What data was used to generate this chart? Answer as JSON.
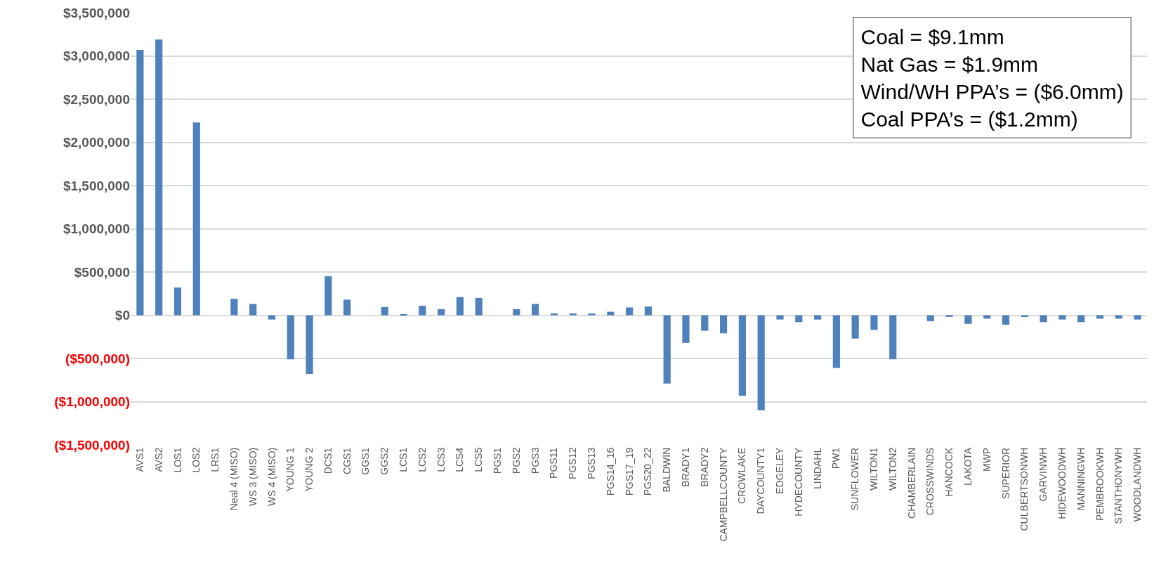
{
  "chart_data": {
    "type": "bar",
    "categories": [
      "AVS1",
      "AVS2",
      "LOS1",
      "LOS2",
      "LRS1",
      "Neal 4 (MISO)",
      "WS 3 (MISO)",
      "WS 4 (MISO)",
      "YOUNG 1",
      "YOUNG 2",
      "DCS1",
      "CGS1",
      "GGS1",
      "GGS2",
      "LCS1",
      "LCS2",
      "LCS3",
      "LCS4",
      "LCS5",
      "PGS1",
      "PGS2",
      "PGS3",
      "PGS11",
      "PGS12",
      "PGS13",
      "PGS14_16",
      "PGS17_19",
      "PGS20_22",
      "BALDWIN",
      "BRADY1",
      "BRADY2",
      "CAMPBELLCOUNTY",
      "CROWLAKE",
      "DAYCOUNTY1",
      "EDGELEY",
      "HYDECOUNTY",
      "LINDAHL",
      "PW1",
      "SUNFLOWER",
      "WILTON1",
      "WILTON2",
      "CHAMBERLAIN",
      "CROSSWINDS",
      "HANCOCK",
      "LAKOTA",
      "MWP",
      "SUPERIOR",
      "CULBERTSONWH",
      "GARVINWH",
      "HIDEWOODWH",
      "MANNINGWH",
      "PEMBROOKWH",
      "STANTHONYWH",
      "WOODLANDWH"
    ],
    "values": [
      3070000,
      3190000,
      320000,
      2230000,
      0,
      190000,
      130000,
      -50000,
      -510000,
      -680000,
      450000,
      180000,
      0,
      95000,
      10000,
      110000,
      70000,
      210000,
      200000,
      0,
      70000,
      130000,
      20000,
      20000,
      20000,
      40000,
      90000,
      100000,
      -790000,
      -320000,
      -180000,
      -210000,
      -930000,
      -1100000,
      -50000,
      -80000,
      -50000,
      -610000,
      -270000,
      -170000,
      -510000,
      0,
      -70000,
      -20000,
      -100000,
      -40000,
      -110000,
      -20000,
      -80000,
      -50000,
      -80000,
      -40000,
      -40000,
      -50000
    ],
    "color": "#4f81bd",
    "ylim": [
      -1500000,
      3500000
    ],
    "yticks": [
      {
        "value": -1500000,
        "label": "($1,500,000)"
      },
      {
        "value": -1000000,
        "label": "($1,000,000)"
      },
      {
        "value": -500000,
        "label": "($500,000)"
      },
      {
        "value": 0,
        "label": "$0"
      },
      {
        "value": 500000,
        "label": "$500,000"
      },
      {
        "value": 1000000,
        "label": "$1,000,000"
      },
      {
        "value": 1500000,
        "label": "$1,500,000"
      },
      {
        "value": 2000000,
        "label": "$2,000,000"
      },
      {
        "value": 2500000,
        "label": "$2,500,000"
      },
      {
        "value": 3000000,
        "label": "$3,000,000"
      },
      {
        "value": 3500000,
        "label": "$3,500,000"
      }
    ],
    "grid": "y",
    "annotations": [
      "Coal = $9.1mm",
      "Nat Gas = $1.9mm",
      "Wind/WH PPA’s = ($6.0mm)",
      "Coal PPA’s = ($1.2mm)"
    ]
  }
}
